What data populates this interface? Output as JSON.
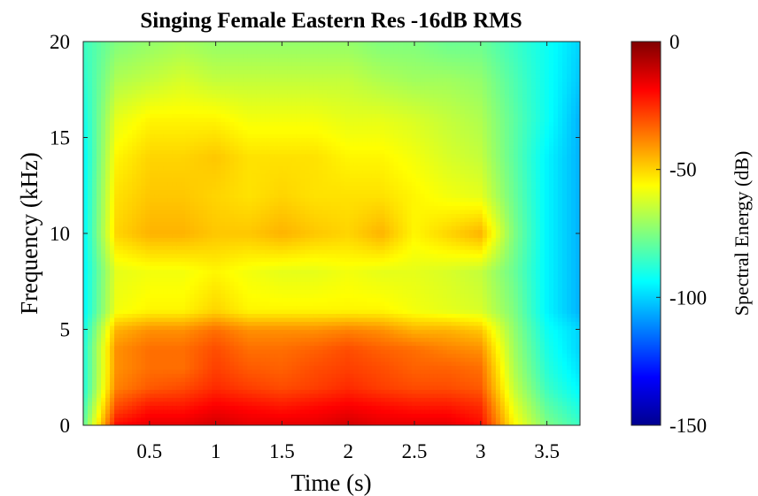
{
  "chart_data": {
    "type": "heatmap",
    "title": "Singing Female Eastern Res -16dB RMS",
    "xlabel": "Time (s)",
    "ylabel": "Frequency (kHz)",
    "xlim": [
      0,
      3.75
    ],
    "ylim": [
      0,
      20
    ],
    "x_ticks": [
      0.5,
      1,
      1.5,
      2,
      2.5,
      3,
      3.5
    ],
    "x_tick_labels": [
      "0.5",
      "1",
      "1.5",
      "2",
      "2.5",
      "3",
      "3.5"
    ],
    "y_ticks": [
      0,
      5,
      10,
      15,
      20
    ],
    "y_tick_labels": [
      "0",
      "5",
      "10",
      "15",
      "20"
    ],
    "colorbar": {
      "label": "Spectral Energy (dB)",
      "limits": [
        -150,
        0
      ],
      "ticks": [
        0,
        -50,
        -100,
        -150
      ],
      "tick_labels": [
        "0",
        "-50",
        "-100",
        "-150"
      ],
      "colormap": "jet"
    },
    "time_bins_s": [
      0.0,
      0.25,
      0.5,
      0.75,
      1.0,
      1.25,
      1.5,
      1.75,
      2.0,
      2.25,
      2.5,
      2.75,
      3.0,
      3.25,
      3.5,
      3.75
    ],
    "freq_bins_khz": [
      0,
      1,
      2,
      3,
      4,
      5,
      6,
      8,
      10,
      12,
      14,
      16,
      18,
      20
    ],
    "energy_db": [
      [
        -80,
        -20,
        -15,
        -15,
        -12,
        -15,
        -15,
        -15,
        -12,
        -15,
        -15,
        -15,
        -20,
        -55,
        -75,
        -85
      ],
      [
        -85,
        -30,
        -22,
        -22,
        -18,
        -20,
        -22,
        -20,
        -18,
        -20,
        -22,
        -22,
        -25,
        -60,
        -80,
        -90
      ],
      [
        -90,
        -38,
        -32,
        -30,
        -25,
        -28,
        -30,
        -28,
        -25,
        -28,
        -30,
        -30,
        -32,
        -65,
        -85,
        -95
      ],
      [
        -90,
        -40,
        -35,
        -35,
        -28,
        -32,
        -33,
        -30,
        -28,
        -30,
        -33,
        -33,
        -35,
        -68,
        -88,
        -98
      ],
      [
        -90,
        -40,
        -35,
        -35,
        -30,
        -35,
        -35,
        -33,
        -30,
        -33,
        -35,
        -38,
        -40,
        -70,
        -90,
        -100
      ],
      [
        -92,
        -45,
        -40,
        -40,
        -35,
        -40,
        -40,
        -40,
        -38,
        -40,
        -45,
        -45,
        -48,
        -72,
        -92,
        -100
      ],
      [
        -95,
        -58,
        -55,
        -55,
        -50,
        -55,
        -55,
        -55,
        -55,
        -55,
        -58,
        -60,
        -62,
        -75,
        -95,
        -105
      ],
      [
        -95,
        -60,
        -58,
        -58,
        -55,
        -58,
        -60,
        -60,
        -58,
        -60,
        -60,
        -62,
        -65,
        -78,
        -95,
        -105
      ],
      [
        -95,
        -50,
        -45,
        -45,
        -48,
        -48,
        -45,
        -48,
        -50,
        -45,
        -55,
        -50,
        -45,
        -75,
        -95,
        -105
      ],
      [
        -95,
        -52,
        -48,
        -48,
        -50,
        -52,
        -50,
        -52,
        -52,
        -52,
        -55,
        -58,
        -60,
        -78,
        -95,
        -105
      ],
      [
        -95,
        -55,
        -50,
        -50,
        -48,
        -52,
        -52,
        -52,
        -55,
        -55,
        -58,
        -62,
        -65,
        -80,
        -95,
        -105
      ],
      [
        -92,
        -60,
        -55,
        -55,
        -55,
        -58,
        -58,
        -58,
        -60,
        -60,
        -62,
        -65,
        -68,
        -80,
        -92,
        -105
      ],
      [
        -88,
        -68,
        -65,
        -62,
        -65,
        -65,
        -65,
        -65,
        -65,
        -68,
        -70,
        -70,
        -72,
        -82,
        -92,
        -102
      ],
      [
        -85,
        -75,
        -72,
        -70,
        -72,
        -72,
        -72,
        -72,
        -72,
        -75,
        -75,
        -78,
        -78,
        -85,
        -92,
        -100
      ]
    ]
  }
}
